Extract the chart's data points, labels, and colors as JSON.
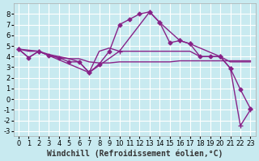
{
  "background_color": "#c8eaf0",
  "grid_color": "#ffffff",
  "line_color": "#882288",
  "x_label": "Windchill (Refroidissement éolien,°C)",
  "x_label_fontsize": 7,
  "tick_fontsize": 6,
  "ylim": [
    -3.5,
    9.0
  ],
  "xlim": [
    -0.5,
    23.5
  ],
  "yticks": [
    -3,
    -2,
    -1,
    0,
    1,
    2,
    3,
    4,
    5,
    6,
    7,
    8
  ],
  "xticks": [
    0,
    1,
    2,
    3,
    4,
    5,
    6,
    7,
    8,
    9,
    10,
    11,
    12,
    13,
    14,
    15,
    16,
    17,
    18,
    19,
    20,
    21,
    22,
    23
  ],
  "series": [
    {
      "x": [
        0,
        1,
        2,
        3,
        4,
        5,
        6,
        7,
        8,
        9,
        10,
        11,
        12,
        13,
        14,
        15,
        16,
        17,
        18,
        19,
        20,
        21,
        22,
        23
      ],
      "y": [
        4.7,
        3.9,
        4.5,
        4.1,
        3.9,
        3.5,
        3.5,
        2.5,
        3.3,
        4.5,
        7.0,
        7.5,
        8.0,
        8.2,
        7.2,
        5.3,
        5.5,
        5.2,
        4.0,
        4.0,
        4.0,
        2.9,
        0.9,
        -0.9
      ],
      "marker": "D",
      "marker_size": 2.5,
      "linewidth": 1.0
    },
    {
      "x": [
        0,
        1,
        2,
        3,
        4,
        5,
        6,
        7,
        8,
        9,
        10,
        11,
        12,
        13,
        14,
        15,
        16,
        17,
        18,
        19,
        20,
        21,
        22,
        23
      ],
      "y": [
        4.7,
        3.9,
        4.5,
        4.1,
        3.9,
        3.8,
        3.8,
        3.5,
        3.4,
        3.4,
        3.5,
        3.5,
        3.5,
        3.5,
        3.5,
        3.5,
        3.6,
        3.6,
        3.6,
        3.6,
        3.6,
        3.6,
        3.6,
        3.6
      ],
      "marker": null,
      "marker_size": 0,
      "linewidth": 1.0
    },
    {
      "x": [
        0,
        1,
        2,
        3,
        4,
        5,
        6,
        7,
        8,
        9,
        10,
        11,
        12,
        13,
        14,
        15,
        16,
        17,
        18,
        19,
        20,
        21,
        22,
        23
      ],
      "y": [
        4.7,
        4.5,
        4.5,
        4.2,
        4.0,
        3.8,
        3.5,
        2.5,
        4.5,
        4.8,
        4.5,
        4.5,
        4.5,
        4.5,
        4.5,
        4.5,
        4.5,
        4.5,
        4.0,
        4.0,
        4.0,
        3.5,
        3.5,
        3.5
      ],
      "marker": null,
      "marker_size": 0,
      "linewidth": 1.0
    },
    {
      "x": [
        0,
        2,
        7,
        10,
        13,
        14,
        16,
        17,
        20,
        21,
        22,
        23
      ],
      "y": [
        4.7,
        4.5,
        2.5,
        4.5,
        8.2,
        7.2,
        5.5,
        5.2,
        4.0,
        2.9,
        -2.5,
        -1.0
      ],
      "marker": "+",
      "marker_size": 4,
      "linewidth": 1.0
    }
  ]
}
